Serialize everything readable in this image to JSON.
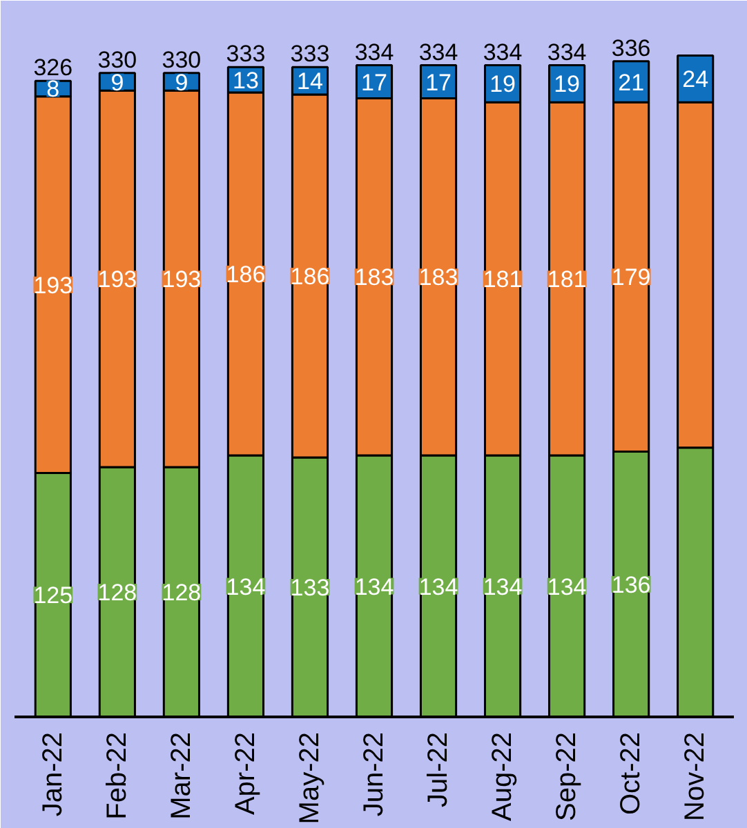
{
  "chart_data": {
    "type": "bar",
    "stacked": true,
    "data_labels": true,
    "categories": [
      "Jan-22",
      "Feb-22",
      "Mar-22",
      "Apr-22",
      "May-22",
      "Jun-22",
      "Jul-22",
      "Aug-22",
      "Sep-22",
      "Oct-22",
      "Nov-22"
    ],
    "series": [
      {
        "color": "#70ad47",
        "values": [
          125,
          128,
          128,
          134,
          133,
          134,
          134,
          134,
          134,
          136,
          138
        ],
        "value_labels": [
          "125",
          "128",
          "128",
          "134",
          "133",
          "134",
          "134",
          "134",
          "134",
          "136",
          null
        ]
      },
      {
        "color": "#ed7d31",
        "values": [
          193,
          193,
          193,
          186,
          186,
          183,
          183,
          181,
          181,
          179,
          177
        ],
        "value_labels": [
          "193",
          "193",
          "193",
          "186",
          "186",
          "183",
          "183",
          "181",
          "181",
          "179",
          null
        ]
      },
      {
        "color": "#1070c0",
        "values": [
          8,
          9,
          9,
          13,
          14,
          17,
          17,
          19,
          19,
          21,
          24
        ],
        "value_labels": [
          "8",
          "9",
          "9",
          "13",
          "14",
          "17",
          "17",
          "19",
          "19",
          "21",
          "24"
        ]
      }
    ],
    "totals": [
      "326",
      "330",
      "330",
      "333",
      "333",
      "334",
      "334",
      "334",
      "334",
      "336",
      null
    ],
    "ylim": [
      0,
      360
    ],
    "tick_labels": "x",
    "grid": false
  }
}
